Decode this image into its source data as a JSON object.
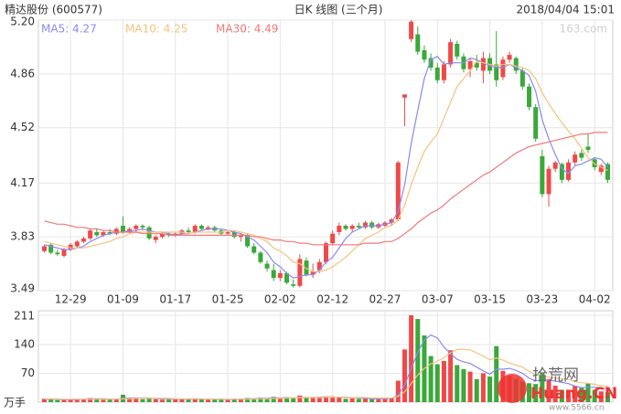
{
  "chart_data": {
    "type": "candlestick",
    "title": "精达股份 (600577)",
    "subtitle": "日K 线图 (三个月)",
    "timestamp": "2018/04/04 15:01",
    "source": "163.com",
    "categories": [
      null,
      null,
      null,
      null,
      "12-29",
      null,
      null,
      null,
      null,
      null,
      null,
      null,
      "01-09",
      null,
      null,
      null,
      null,
      null,
      null,
      null,
      "01-17",
      null,
      null,
      null,
      null,
      null,
      null,
      null,
      "01-25",
      null,
      null,
      null,
      null,
      null,
      null,
      null,
      "02-02",
      null,
      null,
      null,
      null,
      null,
      null,
      null,
      "02-12",
      null,
      null,
      null,
      null,
      null,
      null,
      null,
      "02-27",
      null,
      null,
      null,
      null,
      null,
      null,
      null,
      "03-07",
      null,
      null,
      null,
      null,
      null,
      null,
      null,
      "03-15",
      null,
      null,
      null,
      null,
      null,
      null,
      null,
      "03-23",
      null,
      null,
      null,
      null,
      null,
      null,
      null,
      "04-02",
      null,
      null
    ],
    "open": [
      3.74,
      3.78,
      3.73,
      3.71,
      3.75,
      3.77,
      3.8,
      3.82,
      3.86,
      3.84,
      3.86,
      3.85,
      3.9,
      3.86,
      3.88,
      3.9,
      3.89,
      3.81,
      3.83,
      3.85,
      3.84,
      3.85,
      3.87,
      3.86,
      3.9,
      3.88,
      3.89,
      3.87,
      3.85,
      3.86,
      3.83,
      3.84,
      3.77,
      3.73,
      3.66,
      3.62,
      3.57,
      3.6,
      3.53,
      3.52,
      3.68,
      3.59,
      3.62,
      3.67,
      3.79,
      3.86,
      3.9,
      3.88,
      3.9,
      3.89,
      3.92,
      3.89,
      3.9,
      3.92,
      3.94,
      4.71,
      5.08,
      5.11,
      5.01,
      4.96,
      4.9,
      4.82,
      4.92,
      5.05,
      4.97,
      4.89,
      4.93,
      4.88,
      4.96,
      4.92,
      4.84,
      4.95,
      4.96,
      4.88,
      4.78,
      4.65,
      4.34,
      4.1,
      4.26,
      4.29,
      4.19,
      4.3,
      4.36,
      4.4,
      4.32,
      4.24,
      4.29
    ],
    "high": [
      3.78,
      3.79,
      3.75,
      3.76,
      3.79,
      3.81,
      3.83,
      3.88,
      3.88,
      3.87,
      3.88,
      3.89,
      3.96,
      3.89,
      3.91,
      3.91,
      3.9,
      3.84,
      3.86,
      3.86,
      3.86,
      3.88,
      3.89,
      3.91,
      3.91,
      3.9,
      3.9,
      3.88,
      3.87,
      3.87,
      3.85,
      3.85,
      3.79,
      3.74,
      3.68,
      3.66,
      3.62,
      3.61,
      3.56,
      3.72,
      3.7,
      3.66,
      3.69,
      3.8,
      3.87,
      3.92,
      3.91,
      3.91,
      3.92,
      3.93,
      3.93,
      3.92,
      3.93,
      3.95,
      4.31,
      4.73,
      5.2,
      5.16,
      5.04,
      4.99,
      4.93,
      4.94,
      5.08,
      5.07,
      4.99,
      4.96,
      4.98,
      5.0,
      4.99,
      5.13,
      4.97,
      5.0,
      4.97,
      4.9,
      4.8,
      4.67,
      4.38,
      4.28,
      4.31,
      4.3,
      4.32,
      4.37,
      4.38,
      4.48,
      4.33,
      4.29,
      4.3
    ],
    "low": [
      3.73,
      3.72,
      3.71,
      3.7,
      3.74,
      3.76,
      3.79,
      3.81,
      3.83,
      3.83,
      3.84,
      3.84,
      3.85,
      3.85,
      3.86,
      3.87,
      3.81,
      3.79,
      3.82,
      3.83,
      3.83,
      3.84,
      3.85,
      3.85,
      3.87,
      3.87,
      3.86,
      3.84,
      3.84,
      3.82,
      3.8,
      3.76,
      3.72,
      3.66,
      3.61,
      3.55,
      3.55,
      3.53,
      3.51,
      3.51,
      3.58,
      3.57,
      3.6,
      3.66,
      3.78,
      3.84,
      3.87,
      3.86,
      3.88,
      3.88,
      3.88,
      3.88,
      3.89,
      3.9,
      3.93,
      4.53,
      5.06,
      4.98,
      4.93,
      4.88,
      4.8,
      4.8,
      4.9,
      4.95,
      4.87,
      4.84,
      4.88,
      4.8,
      4.86,
      4.78,
      4.82,
      4.93,
      4.86,
      4.76,
      4.63,
      4.43,
      4.08,
      4.02,
      4.24,
      4.17,
      4.18,
      4.28,
      4.31,
      4.36,
      4.25,
      4.22,
      4.17
    ],
    "close": [
      3.77,
      3.73,
      3.72,
      3.75,
      3.78,
      3.8,
      3.82,
      3.87,
      3.84,
      3.86,
      3.85,
      3.88,
      3.86,
      3.88,
      3.9,
      3.89,
      3.82,
      3.83,
      3.85,
      3.84,
      3.85,
      3.87,
      3.86,
      3.9,
      3.88,
      3.89,
      3.87,
      3.85,
      3.86,
      3.83,
      3.84,
      3.77,
      3.73,
      3.67,
      3.63,
      3.57,
      3.6,
      3.54,
      3.52,
      3.69,
      3.59,
      3.61,
      3.67,
      3.79,
      3.85,
      3.9,
      3.88,
      3.9,
      3.89,
      3.92,
      3.89,
      3.91,
      3.92,
      3.94,
      4.3,
      4.73,
      5.19,
      5.0,
      4.95,
      4.9,
      4.82,
      4.92,
      5.06,
      4.97,
      4.89,
      4.94,
      4.9,
      4.96,
      4.88,
      4.82,
      4.95,
      4.98,
      4.88,
      4.78,
      4.65,
      4.45,
      4.1,
      4.26,
      4.3,
      4.19,
      4.3,
      4.35,
      4.33,
      4.38,
      4.27,
      4.28,
      4.19
    ],
    "up_color": "#f04848",
    "down_color": "#3aa83a",
    "ylim": [
      3.49,
      5.2
    ],
    "yticks": [
      3.49,
      3.83,
      4.17,
      4.52,
      4.86,
      {
        "value": 5.2,
        "label": "5.20"
      }
    ],
    "grid": true,
    "series": [
      {
        "name": "MA5: 4.27",
        "color": "#8a8af0",
        "values": [
          3.78,
          3.77,
          3.76,
          3.75,
          3.75,
          3.76,
          3.77,
          3.8,
          3.82,
          3.84,
          3.85,
          3.86,
          3.86,
          3.87,
          3.87,
          3.88,
          3.87,
          3.86,
          3.86,
          3.85,
          3.84,
          3.85,
          3.85,
          3.86,
          3.87,
          3.88,
          3.88,
          3.88,
          3.87,
          3.86,
          3.85,
          3.83,
          3.81,
          3.77,
          3.73,
          3.67,
          3.64,
          3.6,
          3.57,
          3.58,
          3.59,
          3.59,
          3.62,
          3.67,
          3.7,
          3.76,
          3.82,
          3.86,
          3.88,
          3.9,
          3.9,
          3.9,
          3.91,
          3.92,
          3.99,
          4.16,
          4.42,
          4.63,
          4.83,
          4.95,
          4.97,
          4.92,
          4.93,
          4.93,
          4.93,
          4.96,
          4.95,
          4.93,
          4.91,
          4.9,
          4.9,
          4.92,
          4.9,
          4.88,
          4.85,
          4.75,
          4.57,
          4.45,
          4.35,
          4.26,
          4.23,
          4.28,
          4.29,
          4.31,
          4.33,
          4.32,
          4.27
        ]
      },
      {
        "name": "MA10: 4.25",
        "color": "#f7c27e",
        "values": [
          3.8,
          3.79,
          3.78,
          3.77,
          3.76,
          3.76,
          3.76,
          3.77,
          3.78,
          3.79,
          3.8,
          3.82,
          3.83,
          3.85,
          3.86,
          3.86,
          3.86,
          3.86,
          3.86,
          3.86,
          3.86,
          3.86,
          3.85,
          3.86,
          3.86,
          3.86,
          3.86,
          3.86,
          3.87,
          3.87,
          3.86,
          3.85,
          3.84,
          3.82,
          3.8,
          3.76,
          3.74,
          3.71,
          3.67,
          3.66,
          3.63,
          3.61,
          3.61,
          3.62,
          3.64,
          3.67,
          3.7,
          3.74,
          3.78,
          3.82,
          3.84,
          3.86,
          3.89,
          3.9,
          3.94,
          4.03,
          4.16,
          4.27,
          4.37,
          4.43,
          4.48,
          4.58,
          4.68,
          4.78,
          4.83,
          4.88,
          4.94,
          4.93,
          4.92,
          4.91,
          4.92,
          4.92,
          4.91,
          4.9,
          4.88,
          4.83,
          4.74,
          4.67,
          4.61,
          4.55,
          4.5,
          4.45,
          4.39,
          4.33,
          4.29,
          4.27,
          4.25
        ]
      },
      {
        "name": "MA30: 4.49",
        "color": "#f07878",
        "values": [
          3.93,
          3.92,
          3.91,
          3.91,
          3.9,
          3.89,
          3.89,
          3.88,
          3.88,
          3.87,
          3.87,
          3.86,
          3.86,
          3.86,
          3.86,
          3.85,
          3.85,
          3.85,
          3.85,
          3.84,
          3.84,
          3.84,
          3.84,
          3.84,
          3.84,
          3.84,
          3.84,
          3.84,
          3.84,
          3.84,
          3.84,
          3.84,
          3.83,
          3.83,
          3.82,
          3.81,
          3.81,
          3.8,
          3.8,
          3.79,
          3.79,
          3.78,
          3.78,
          3.78,
          3.78,
          3.78,
          3.78,
          3.78,
          3.78,
          3.79,
          3.79,
          3.79,
          3.8,
          3.8,
          3.82,
          3.85,
          3.88,
          3.92,
          3.95,
          3.98,
          4.0,
          4.03,
          4.07,
          4.1,
          4.13,
          4.16,
          4.19,
          4.22,
          4.24,
          4.27,
          4.3,
          4.33,
          4.36,
          4.38,
          4.4,
          4.41,
          4.42,
          4.43,
          4.44,
          4.45,
          4.46,
          4.47,
          4.48,
          4.48,
          4.49,
          4.49,
          4.49
        ]
      }
    ],
    "volume": {
      "unit": "万手",
      "ylim": [
        0,
        211
      ],
      "yticks": [
        70,
        140,
        211
      ],
      "values": [
        8,
        6,
        5,
        6,
        7,
        8,
        7,
        10,
        7,
        6,
        6,
        8,
        18,
        9,
        8,
        7,
        10,
        7,
        6,
        6,
        7,
        8,
        6,
        9,
        7,
        6,
        6,
        7,
        6,
        8,
        7,
        10,
        9,
        11,
        10,
        13,
        9,
        10,
        9,
        16,
        12,
        10,
        11,
        13,
        14,
        12,
        8,
        9,
        8,
        9,
        7,
        8,
        9,
        10,
        52,
        128,
        211,
        202,
        162,
        112,
        92,
        100,
        126,
        90,
        80,
        74,
        56,
        70,
        62,
        136,
        76,
        64,
        56,
        50,
        46,
        44,
        70,
        56,
        40,
        30,
        30,
        40,
        35,
        45,
        30,
        26,
        24
      ],
      "series": [
        {
          "color": "#8a8af0",
          "values": [
            7,
            7,
            7,
            6,
            6,
            6,
            7,
            8,
            8,
            8,
            7,
            7,
            9,
            10,
            10,
            10,
            10,
            8,
            8,
            7,
            7,
            7,
            7,
            7,
            7,
            7,
            7,
            7,
            6,
            7,
            7,
            8,
            8,
            9,
            9,
            11,
            10,
            11,
            10,
            12,
            11,
            11,
            12,
            13,
            12,
            12,
            12,
            11,
            10,
            9,
            8,
            8,
            8,
            9,
            17,
            41,
            82,
            121,
            151,
            163,
            156,
            134,
            118,
            104,
            98,
            94,
            85,
            76,
            68,
            80,
            80,
            82,
            77,
            70,
            58,
            52,
            53,
            53,
            51,
            48,
            45,
            39,
            35,
            36,
            36,
            35,
            32
          ]
        },
        {
          "color": "#f7c27e",
          "values": [
            8,
            8,
            8,
            7,
            7,
            7,
            7,
            7,
            7,
            7,
            7,
            7,
            8,
            8,
            9,
            9,
            9,
            9,
            9,
            9,
            8,
            8,
            8,
            8,
            8,
            7,
            7,
            7,
            7,
            7,
            7,
            7,
            7,
            8,
            8,
            9,
            9,
            10,
            10,
            11,
            11,
            11,
            11,
            12,
            12,
            12,
            11,
            11,
            11,
            11,
            10,
            10,
            10,
            10,
            14,
            25,
            45,
            66,
            82,
            93,
            100,
            108,
            120,
            128,
            128,
            127,
            120,
            112,
            103,
            107,
            102,
            95,
            90,
            85,
            75,
            67,
            65,
            61,
            58,
            57,
            55,
            50,
            47,
            46,
            43,
            40,
            38
          ]
        }
      ]
    }
  },
  "watermark": {
    "site": "拾荒网",
    "domain": "Huang.CN",
    "url": "www.5566.cn"
  }
}
